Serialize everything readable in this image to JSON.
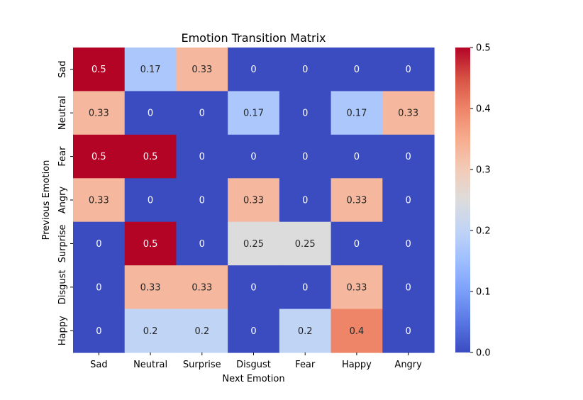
{
  "chart_data": {
    "type": "heatmap",
    "title": "Emotion Transition Matrix",
    "xlabel": "Next Emotion",
    "ylabel": "Previous Emotion",
    "x_categories": [
      "Sad",
      "Neutral",
      "Surprise",
      "Disgust",
      "Fear",
      "Happy",
      "Angry"
    ],
    "y_categories": [
      "Sad",
      "Neutral",
      "Fear",
      "Angry",
      "Surprise",
      "Disgust",
      "Happy"
    ],
    "values": [
      [
        0.5,
        0.17,
        0.33,
        0,
        0,
        0,
        0
      ],
      [
        0.33,
        0,
        0,
        0.17,
        0,
        0.17,
        0.33
      ],
      [
        0.5,
        0.5,
        0,
        0,
        0,
        0,
        0
      ],
      [
        0.33,
        0,
        0,
        0.33,
        0,
        0.33,
        0
      ],
      [
        0,
        0.5,
        0,
        0.25,
        0.25,
        0,
        0
      ],
      [
        0,
        0.33,
        0.33,
        0,
        0,
        0.33,
        0
      ],
      [
        0,
        0.2,
        0.2,
        0,
        0.2,
        0.4,
        0
      ]
    ],
    "colormap": "coolwarm",
    "colorbar": {
      "range": [
        0.0,
        0.5
      ],
      "ticks": [
        "0.0",
        "0.1",
        "0.2",
        "0.3",
        "0.4",
        "0.5"
      ]
    },
    "annotations": true,
    "grid": false
  }
}
